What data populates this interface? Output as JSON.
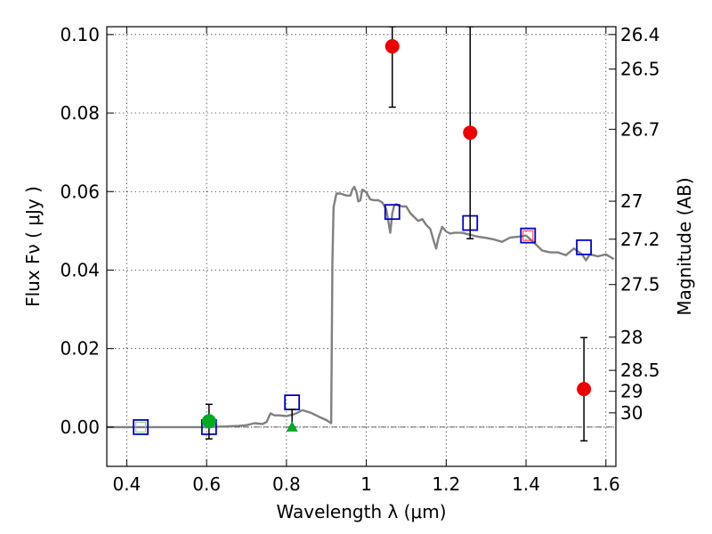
{
  "chart_data": {
    "type": "scatter",
    "xlabel": "Wavelength  λ (μm)",
    "ylabel": "Flux  Fν  ( μJy )",
    "ylabel2": "Magnitude (AB)",
    "xlim": [
      0.35,
      1.625
    ],
    "ylim": [
      -0.01,
      0.102
    ],
    "grid": true,
    "x_ticks": [
      {
        "value": 0.4,
        "label": "0.4"
      },
      {
        "value": 0.6,
        "label": "0.6"
      },
      {
        "value": 0.8,
        "label": "0.8"
      },
      {
        "value": 1.0,
        "label": "1"
      },
      {
        "value": 1.2,
        "label": "1.2"
      },
      {
        "value": 1.4,
        "label": "1.4"
      },
      {
        "value": 1.6,
        "label": "1.6"
      }
    ],
    "y_ticks": [
      {
        "value": 0.0,
        "label": "0.00"
      },
      {
        "value": 0.02,
        "label": "0.02"
      },
      {
        "value": 0.04,
        "label": "0.04"
      },
      {
        "value": 0.06,
        "label": "0.06"
      },
      {
        "value": 0.08,
        "label": "0.08"
      },
      {
        "value": 0.1,
        "label": "0.10"
      }
    ],
    "mag_ticks": [
      {
        "value": 26.4,
        "label": "26.4"
      },
      {
        "value": 26.5,
        "label": "26.5"
      },
      {
        "value": 26.7,
        "label": "26.7"
      },
      {
        "value": 27.0,
        "label": "27"
      },
      {
        "value": 27.2,
        "label": "27.2"
      },
      {
        "value": 27.5,
        "label": "27.5"
      },
      {
        "value": 28.0,
        "label": "28"
      },
      {
        "value": 28.5,
        "label": "28.5"
      },
      {
        "value": 29.0,
        "label": "29"
      },
      {
        "value": 30.0,
        "label": "30"
      }
    ],
    "series": [
      {
        "kind": "model",
        "color": "#808080",
        "x": [
          0.35,
          0.4,
          0.5,
          0.6,
          0.68,
          0.7,
          0.72,
          0.74,
          0.75,
          0.76,
          0.77,
          0.78,
          0.8,
          0.82,
          0.84,
          0.86,
          0.88,
          0.9,
          0.912,
          0.915,
          0.918,
          0.925,
          0.935,
          0.95,
          0.96,
          0.965,
          0.97,
          0.975,
          0.98,
          0.985,
          0.99,
          1.0,
          1.01,
          1.02,
          1.03,
          1.04,
          1.05,
          1.06,
          1.065,
          1.07,
          1.075,
          1.08,
          1.09,
          1.1,
          1.11,
          1.12,
          1.13,
          1.14,
          1.15,
          1.16,
          1.17,
          1.175,
          1.18,
          1.19,
          1.2,
          1.21,
          1.22,
          1.24,
          1.26,
          1.28,
          1.3,
          1.32,
          1.34,
          1.36,
          1.38,
          1.4,
          1.42,
          1.44,
          1.46,
          1.48,
          1.5,
          1.52,
          1.54,
          1.55,
          1.56,
          1.58,
          1.6,
          1.62
        ],
        "y": [
          0.0,
          0.0,
          0.0,
          0.0,
          0.0003,
          0.0005,
          0.001,
          0.0008,
          0.0013,
          0.0035,
          0.003,
          0.003,
          0.0028,
          0.0033,
          0.0043,
          0.0037,
          0.0027,
          0.0018,
          0.001,
          0.042,
          0.056,
          0.0595,
          0.0595,
          0.059,
          0.059,
          0.0605,
          0.0612,
          0.06,
          0.0575,
          0.0578,
          0.0605,
          0.0598,
          0.058,
          0.0578,
          0.0578,
          0.0572,
          0.0555,
          0.0495,
          0.0545,
          0.0565,
          0.0568,
          0.0565,
          0.0562,
          0.0562,
          0.0545,
          0.0535,
          0.0525,
          0.053,
          0.0515,
          0.0505,
          0.047,
          0.0455,
          0.048,
          0.051,
          0.0498,
          0.0493,
          0.0495,
          0.0495,
          0.049,
          0.0485,
          0.0482,
          0.0478,
          0.0472,
          0.0483,
          0.0485,
          0.0488,
          0.047,
          0.045,
          0.0445,
          0.0445,
          0.0438,
          0.0455,
          0.044,
          0.0425,
          0.044,
          0.0435,
          0.044,
          0.0428
        ]
      },
      {
        "kind": "model_photometry",
        "marker": "open-square",
        "color": "#0000cc",
        "x": [
          0.435,
          0.606,
          0.814,
          1.065,
          1.26,
          1.405,
          1.545
        ],
        "y": [
          0.0,
          0.0,
          0.0063,
          0.0548,
          0.052,
          0.0488,
          0.0458
        ]
      },
      {
        "kind": "detections",
        "marker": "filled-circle",
        "color": "#ee0000",
        "x": [
          1.065,
          1.26,
          1.545
        ],
        "y": [
          0.097,
          0.075,
          0.0097
        ],
        "err_low": [
          0.0815,
          0.048,
          -0.0035
        ],
        "err_high": [
          0.102,
          0.102,
          0.0228
        ]
      },
      {
        "kind": "optical_flux",
        "marker": "filled-circle",
        "color": "#00aa22",
        "x": [
          0.606
        ],
        "y": [
          0.0015
        ],
        "err_low": [
          -0.003
        ],
        "err_high": [
          0.0058
        ]
      },
      {
        "kind": "upper_limit",
        "marker": "filled-triangle",
        "color": "#00aa22",
        "x": [
          0.814
        ],
        "y": [
          0.0
        ],
        "err_low": [
          0.0
        ],
        "err_high": [
          0.0045
        ]
      },
      {
        "kind": "inner_square",
        "marker": "open-square-small",
        "color": "#ff3333",
        "x": [
          1.405
        ],
        "y": [
          0.0488
        ]
      },
      {
        "kind": "inner_square",
        "marker": "open-square-small",
        "color": "#88cc88",
        "x": [
          0.435
        ],
        "y": [
          0.0
        ]
      }
    ]
  }
}
